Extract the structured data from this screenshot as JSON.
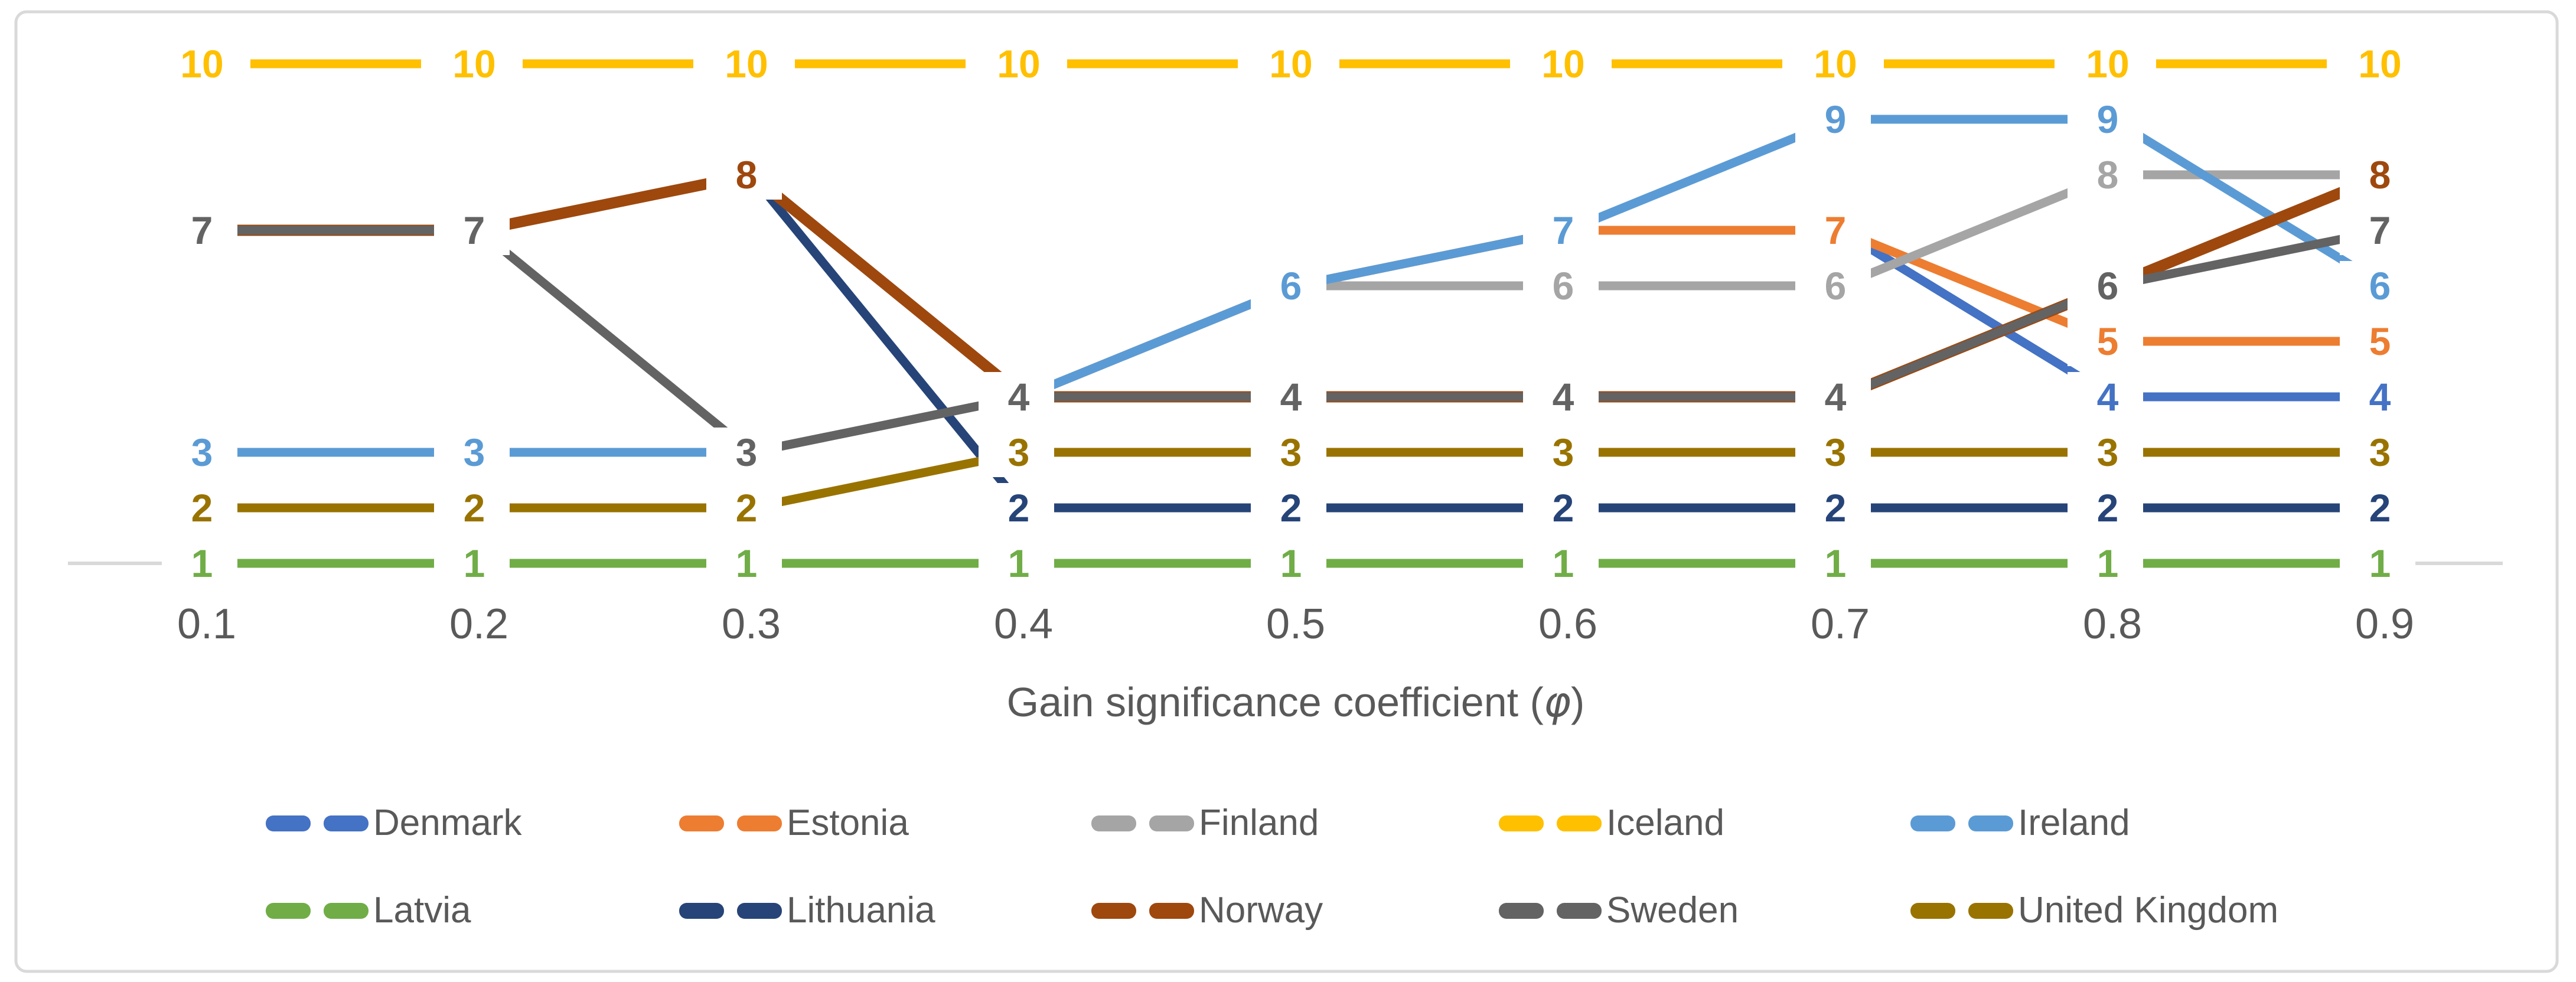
{
  "chart_data": {
    "type": "line",
    "title": "",
    "xlabel": "Gain significance coefficient (φ)",
    "ylabel": "",
    "categories": [
      "0.1",
      "0.2",
      "0.3",
      "0.4",
      "0.5",
      "0.6",
      "0.7",
      "0.8",
      "0.9"
    ],
    "ylim": [
      1,
      10
    ],
    "y_axis_visible": false,
    "gridline_at_value": 1,
    "grid": "single horizontal gridline at rank 1 only",
    "legend_position": "bottom",
    "data_labels": "every point labeled with its rank value in series color on white box",
    "series": [
      {
        "name": "Denmark",
        "color": "#4472C4",
        "values": [
          3,
          3,
          3,
          4,
          6,
          7,
          7,
          4,
          4
        ]
      },
      {
        "name": "Estonia",
        "color": "#ED7D31",
        "values": [
          3,
          3,
          3,
          4,
          6,
          7,
          7,
          5,
          5
        ]
      },
      {
        "name": "Finland",
        "color": "#A5A5A5",
        "values": [
          3,
          3,
          3,
          4,
          6,
          6,
          6,
          8,
          8
        ]
      },
      {
        "name": "Iceland",
        "color": "#FFC000",
        "values": [
          10,
          10,
          10,
          10,
          10,
          10,
          10,
          10,
          10
        ]
      },
      {
        "name": "Ireland",
        "color": "#5B9BD5",
        "values": [
          3,
          3,
          3,
          4,
          6,
          7,
          9,
          9,
          6
        ]
      },
      {
        "name": "Latvia",
        "color": "#70AD47",
        "values": [
          1,
          1,
          1,
          1,
          1,
          1,
          1,
          1,
          1
        ]
      },
      {
        "name": "Lithuania",
        "color": "#264478",
        "values": [
          7,
          7,
          8,
          2,
          2,
          2,
          2,
          2,
          2
        ]
      },
      {
        "name": "Norway",
        "color": "#9E480E",
        "values": [
          7,
          7,
          8,
          4,
          4,
          4,
          4,
          6,
          8
        ]
      },
      {
        "name": "Sweden",
        "color": "#636363",
        "values": [
          7,
          7,
          3,
          4,
          4,
          4,
          4,
          6,
          7
        ]
      },
      {
        "name": "United Kingdom",
        "color": "#997300",
        "values": [
          2,
          2,
          2,
          3,
          3,
          3,
          3,
          3,
          3
        ]
      }
    ],
    "legend_rows": [
      [
        "Denmark",
        "Estonia",
        "Finland",
        "Iceland",
        "Ireland"
      ],
      [
        "Latvia",
        "Lithuania",
        "Norway",
        "Sweden",
        "United Kingdom"
      ]
    ]
  },
  "styles": {
    "text_color": "#595959",
    "gridline_color": "#D9D9D9",
    "border_color": "#D9D9D9",
    "background": "#FFFFFF"
  }
}
